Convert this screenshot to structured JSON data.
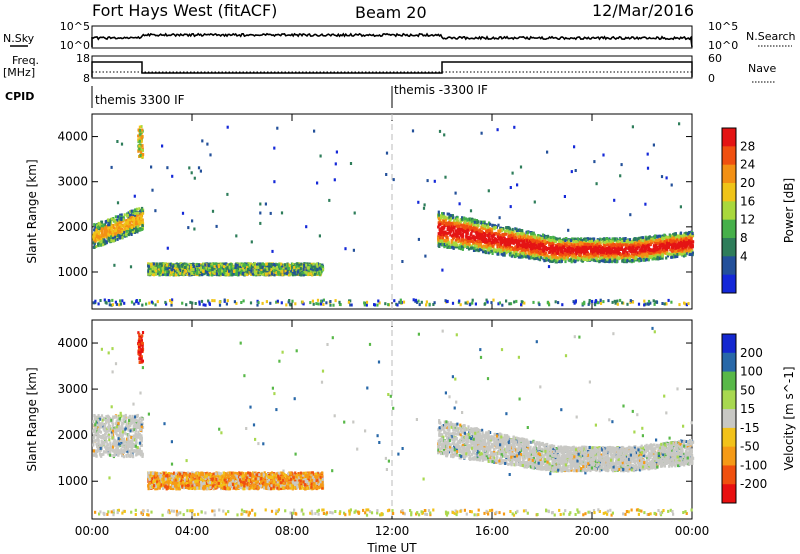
{
  "header": {
    "station": "Fort Hays West (fitACF)",
    "beam": "Beam 20",
    "date": "12/Mar/2016"
  },
  "sky_panel": {
    "left_label": "N.Sky",
    "right_label": "N.Search",
    "left_ticks": [
      "10^5",
      "10^0"
    ],
    "right_ticks": [
      "10^5",
      "10^0"
    ]
  },
  "freq_panel": {
    "left_label": "Freq.",
    "left_unit": "[MHz]",
    "right_label": "Nave",
    "left_ticks": [
      "18",
      "8"
    ],
    "right_ticks": [
      "60",
      "0"
    ]
  },
  "cpid": {
    "label": "CPID",
    "segments": [
      "themis 3300 IF",
      "themis -3300 IF"
    ],
    "change_hour": 12
  },
  "colors": {
    "power_scale": [
      "#1428d8",
      "#23509a",
      "#2e7d5a",
      "#46b04a",
      "#a9d83c",
      "#f0c418",
      "#f39014",
      "#f05010",
      "#e41414"
    ],
    "velocity_scale": [
      "#e81010",
      "#f0500e",
      "#f59a16",
      "#f2c21a",
      "#c8c8c4",
      "#a8d850",
      "#58b848",
      "#2868a8",
      "#1428d0"
    ]
  },
  "chart_data": [
    {
      "type": "heatmap",
      "title": "",
      "xlabel": "",
      "ylabel": "Slant Range [km]",
      "x_ticks": [
        "00:00",
        "04:00",
        "08:00",
        "12:00",
        "16:00",
        "20:00",
        "00:00"
      ],
      "xlim": [
        0,
        24
      ],
      "ylim": [
        180,
        4500
      ],
      "y_ticks": [
        1000,
        2000,
        3000,
        4000
      ],
      "colorbar": {
        "label": "Power [dB]",
        "range": [
          0,
          32
        ],
        "ticks": [
          4,
          8,
          12,
          16,
          20,
          24,
          28
        ]
      },
      "features": [
        {
          "name": "evening echo",
          "t_start": 0.0,
          "t_end": 2.0,
          "range_start": 1600,
          "range_end": 2200,
          "power_db": 20
        },
        {
          "name": "short echo band",
          "t_start": 2.2,
          "t_end": 9.2,
          "range_start": 900,
          "range_end": 1150,
          "power_db": 10
        },
        {
          "name": "spike",
          "t_start": 1.8,
          "t_end": 2.0,
          "range_start": 3500,
          "range_end": 4200,
          "power_db": 22
        },
        {
          "name": "main echo band",
          "t_start": 13.8,
          "t_end": 24.0,
          "range_start": 1200,
          "range_end": 2200,
          "power_db": 26
        }
      ]
    },
    {
      "type": "heatmap",
      "title": "",
      "xlabel": "Time UT",
      "ylabel": "Slant Range [km]",
      "x_ticks": [
        "00:00",
        "04:00",
        "08:00",
        "12:00",
        "16:00",
        "20:00",
        "00:00"
      ],
      "xlim": [
        0,
        24
      ],
      "ylim": [
        180,
        4500
      ],
      "y_ticks": [
        1000,
        2000,
        3000,
        4000
      ],
      "colorbar": {
        "label": "Velocity [m s^-1]",
        "ticks": [
          200,
          100,
          50,
          15,
          -15,
          -50,
          -100,
          -200
        ]
      },
      "features": [
        {
          "name": "ground scatter",
          "t_start": 0.0,
          "t_end": 2.0,
          "range_start": 1500,
          "range_end": 2400,
          "velocity": 0
        },
        {
          "name": "short echo band",
          "t_start": 2.2,
          "t_end": 9.2,
          "range_start": 800,
          "range_end": 1150,
          "velocity": -50
        },
        {
          "name": "spike",
          "t_start": 1.8,
          "t_end": 2.0,
          "range_start": 3500,
          "range_end": 4200,
          "velocity": -200
        },
        {
          "name": "main echo band",
          "t_start": 13.8,
          "t_end": 24.0,
          "range_start": 1300,
          "range_end": 2300,
          "velocity": 0
        }
      ]
    }
  ]
}
